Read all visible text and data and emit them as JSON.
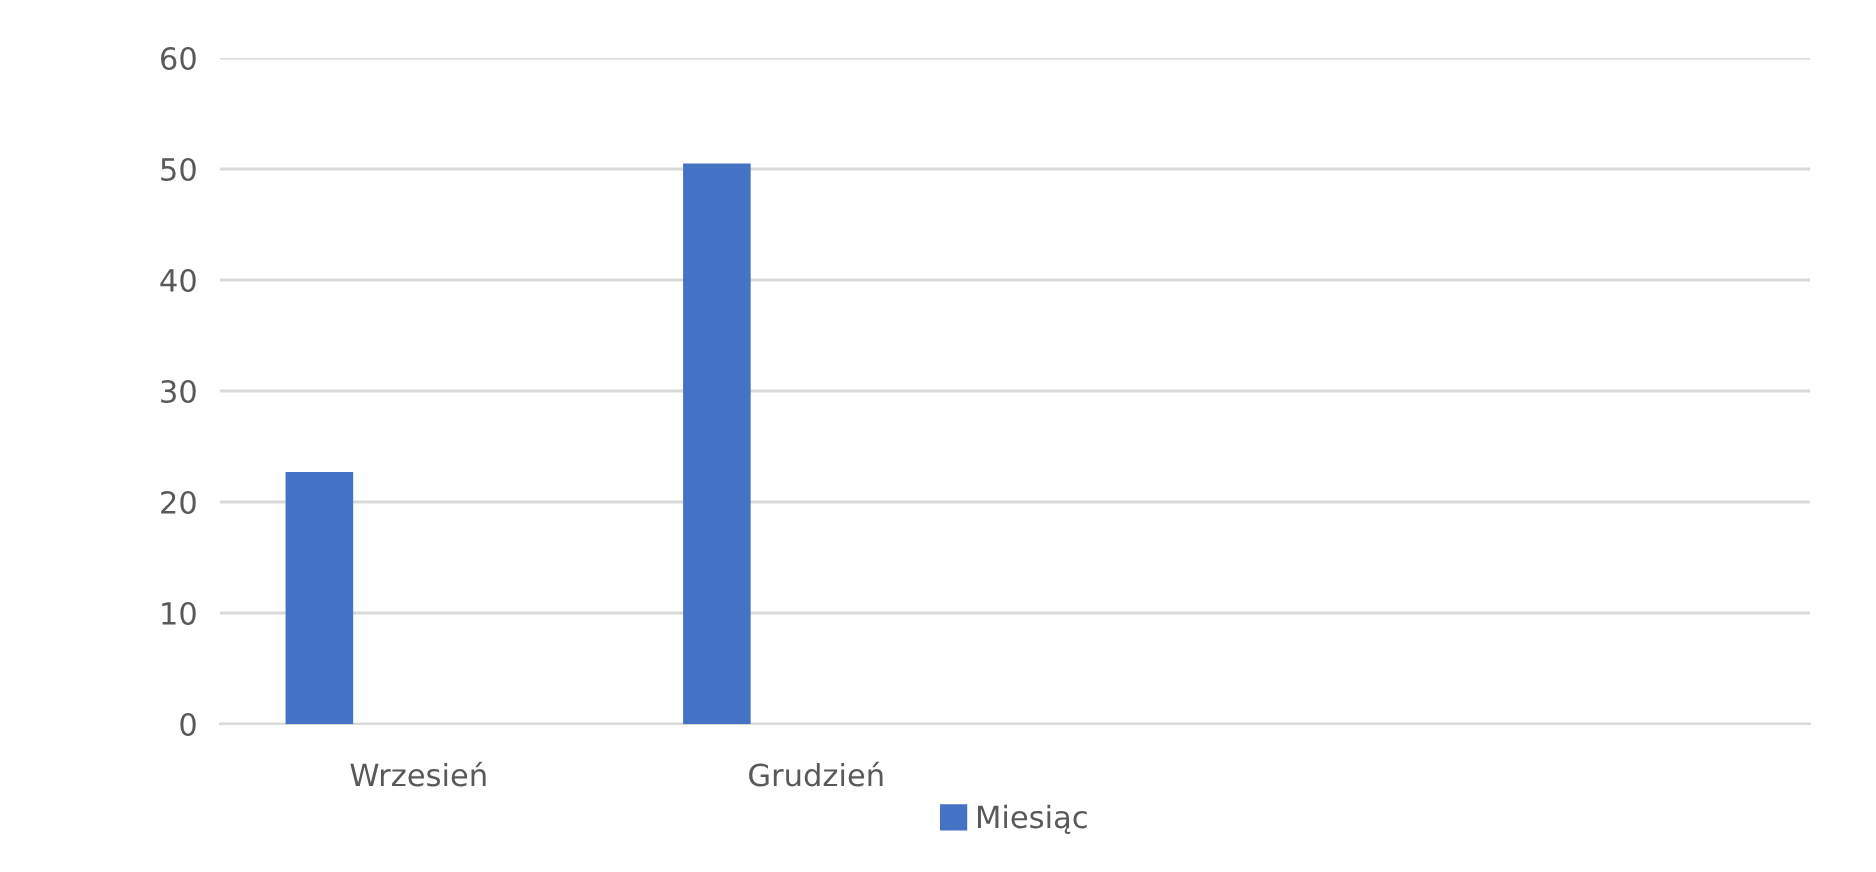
{
  "chart_data": {
    "type": "bar",
    "categories": [
      "Wrzesień",
      "Grudzień",
      null,
      null
    ],
    "series": [
      {
        "name": "Miesiąc",
        "color": "#4472c4",
        "values": [
          22.7,
          50.5,
          null,
          null
        ]
      }
    ],
    "ylim": [
      0,
      60
    ],
    "yticks": [
      0,
      10,
      20,
      30,
      40,
      50,
      60
    ],
    "grid": "y",
    "legend": "bottom"
  }
}
